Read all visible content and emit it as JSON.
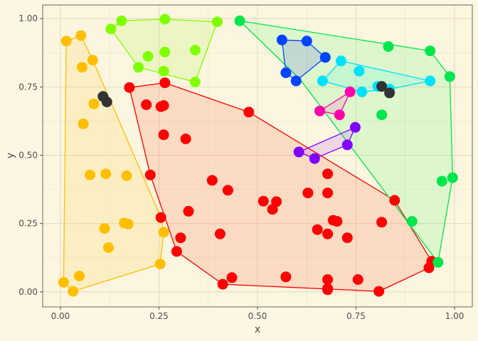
{
  "chart_data": {
    "type": "scatter",
    "xlabel": "x",
    "ylabel": "y",
    "xlim": [
      -0.045,
      1.045
    ],
    "ylim": [
      -0.055,
      1.05
    ],
    "x_ticks": [
      0,
      0.25,
      0.5,
      0.75,
      1
    ],
    "x_tick_labels": [
      "0.00",
      "0.25",
      "0.50",
      "0.75",
      "1.00"
    ],
    "y_ticks": [
      0,
      0.25,
      0.5,
      0.75,
      1
    ],
    "y_tick_labels": [
      "0.00",
      "0.25",
      "0.50",
      "0.75",
      "1.00"
    ],
    "grid": true,
    "legend": "none",
    "hulls": [
      {
        "stroke": "#ffbf00",
        "fill": "#ffbf00",
        "hull": [
          [
            0.015,
            0.918
          ],
          [
            0.052,
            0.938
          ],
          [
            0.082,
            0.848
          ],
          [
            0.255,
            0.272
          ],
          [
            0.262,
            0.218
          ],
          [
            0.253,
            0.102
          ],
          [
            0.032,
            0.002
          ],
          [
            0.008,
            0.035
          ]
        ],
        "points": [
          [
            0.015,
            0.918
          ],
          [
            0.052,
            0.938
          ],
          [
            0.082,
            0.848
          ],
          [
            0.055,
            0.822
          ],
          [
            0.085,
            0.688
          ],
          [
            0.058,
            0.615
          ],
          [
            0.075,
            0.428
          ],
          [
            0.115,
            0.432
          ],
          [
            0.168,
            0.425
          ],
          [
            0.255,
            0.272
          ],
          [
            0.262,
            0.218
          ],
          [
            0.162,
            0.252
          ],
          [
            0.172,
            0.248
          ],
          [
            0.112,
            0.232
          ],
          [
            0.122,
            0.162
          ],
          [
            0.253,
            0.102
          ],
          [
            0.048,
            0.058
          ],
          [
            0.008,
            0.035
          ],
          [
            0.032,
            0.002
          ]
        ]
      },
      {
        "stroke": "#80ff00",
        "fill": "#80ff00",
        "hull": [
          [
            0.128,
            0.962
          ],
          [
            0.155,
            0.992
          ],
          [
            0.265,
            0.998
          ],
          [
            0.398,
            0.988
          ],
          [
            0.342,
            0.768
          ],
          [
            0.198,
            0.822
          ]
        ],
        "points": [
          [
            0.128,
            0.962
          ],
          [
            0.155,
            0.992
          ],
          [
            0.265,
            0.998
          ],
          [
            0.398,
            0.988
          ],
          [
            0.222,
            0.862
          ],
          [
            0.265,
            0.878
          ],
          [
            0.342,
            0.885
          ],
          [
            0.198,
            0.822
          ],
          [
            0.262,
            0.808
          ],
          [
            0.342,
            0.768
          ]
        ]
      },
      {
        "stroke": "#ff0000",
        "fill": "#ff2200",
        "hull": [
          [
            0.265,
            0.765
          ],
          [
            0.478,
            0.658
          ],
          [
            0.848,
            0.335
          ],
          [
            0.942,
            0.112
          ],
          [
            0.935,
            0.088
          ],
          [
            0.808,
            0.002
          ],
          [
            0.412,
            0.028
          ],
          [
            0.295,
            0.148
          ],
          [
            0.228,
            0.428
          ],
          [
            0.175,
            0.748
          ]
        ],
        "points": [
          [
            0.175,
            0.748
          ],
          [
            0.265,
            0.765
          ],
          [
            0.218,
            0.685
          ],
          [
            0.255,
            0.678
          ],
          [
            0.262,
            0.682
          ],
          [
            0.478,
            0.658
          ],
          [
            0.262,
            0.575
          ],
          [
            0.318,
            0.56
          ],
          [
            0.228,
            0.428
          ],
          [
            0.385,
            0.408
          ],
          [
            0.425,
            0.372
          ],
          [
            0.548,
            0.33
          ],
          [
            0.515,
            0.332
          ],
          [
            0.538,
            0.302
          ],
          [
            0.628,
            0.362
          ],
          [
            0.678,
            0.432
          ],
          [
            0.678,
            0.362
          ],
          [
            0.848,
            0.335
          ],
          [
            0.325,
            0.295
          ],
          [
            0.255,
            0.272
          ],
          [
            0.405,
            0.212
          ],
          [
            0.305,
            0.198
          ],
          [
            0.295,
            0.148
          ],
          [
            0.652,
            0.228
          ],
          [
            0.678,
            0.212
          ],
          [
            0.692,
            0.262
          ],
          [
            0.702,
            0.258
          ],
          [
            0.728,
            0.198
          ],
          [
            0.815,
            0.255
          ],
          [
            0.942,
            0.112
          ],
          [
            0.935,
            0.088
          ],
          [
            0.435,
            0.052
          ],
          [
            0.572,
            0.055
          ],
          [
            0.678,
            0.045
          ],
          [
            0.755,
            0.045
          ],
          [
            0.412,
            0.028
          ],
          [
            0.678,
            0.012
          ],
          [
            0.678,
            0.008
          ],
          [
            0.808,
            0.002
          ]
        ]
      },
      {
        "stroke": "#00e64d",
        "fill": "#00ff40",
        "hull": [
          [
            0.455,
            0.992
          ],
          [
            0.938,
            0.882
          ],
          [
            0.988,
            0.788
          ],
          [
            0.995,
            0.418
          ],
          [
            0.958,
            0.108
          ],
          [
            0.608,
            0.778
          ]
        ],
        "points": [
          [
            0.455,
            0.992
          ],
          [
            0.832,
            0.898
          ],
          [
            0.938,
            0.882
          ],
          [
            0.988,
            0.788
          ],
          [
            0.815,
            0.648
          ],
          [
            0.968,
            0.405
          ],
          [
            0.995,
            0.418
          ],
          [
            0.892,
            0.258
          ],
          [
            0.958,
            0.108
          ]
        ]
      },
      {
        "stroke": "#00e0ff",
        "fill": "#00ffff",
        "hull": [
          [
            0.712,
            0.845
          ],
          [
            0.938,
            0.772
          ],
          [
            0.835,
            0.742
          ],
          [
            0.765,
            0.732
          ],
          [
            0.665,
            0.772
          ]
        ],
        "points": [
          [
            0.712,
            0.845
          ],
          [
            0.758,
            0.808
          ],
          [
            0.938,
            0.772
          ],
          [
            0.665,
            0.772
          ],
          [
            0.805,
            0.752
          ],
          [
            0.835,
            0.742
          ],
          [
            0.765,
            0.732
          ]
        ]
      },
      {
        "stroke": "#0044ff",
        "fill": "#0000ff",
        "hull": [
          [
            0.562,
            0.922
          ],
          [
            0.625,
            0.918
          ],
          [
            0.672,
            0.858
          ],
          [
            0.598,
            0.772
          ],
          [
            0.572,
            0.802
          ]
        ],
        "points": [
          [
            0.562,
            0.922
          ],
          [
            0.625,
            0.918
          ],
          [
            0.672,
            0.858
          ],
          [
            0.572,
            0.802
          ],
          [
            0.598,
            0.772
          ]
        ]
      },
      {
        "stroke": "#ff00aa",
        "fill": "#ff00cc",
        "hull": [
          [
            0.735,
            0.732
          ],
          [
            0.708,
            0.648
          ],
          [
            0.658,
            0.662
          ]
        ],
        "points": [
          [
            0.735,
            0.732
          ],
          [
            0.658,
            0.662
          ],
          [
            0.708,
            0.648
          ]
        ]
      },
      {
        "stroke": "#8000ff",
        "fill": "#8000ff",
        "hull": [
          [
            0.748,
            0.602
          ],
          [
            0.728,
            0.538
          ],
          [
            0.645,
            0.488
          ],
          [
            0.605,
            0.512
          ]
        ],
        "points": [
          [
            0.748,
            0.602
          ],
          [
            0.605,
            0.512
          ],
          [
            0.728,
            0.538
          ],
          [
            0.645,
            0.488
          ]
        ]
      }
    ],
    "extra_points": [
      {
        "color": "#333333",
        "points": [
          [
            0.108,
            0.715
          ],
          [
            0.118,
            0.695
          ],
          [
            0.815,
            0.752
          ],
          [
            0.835,
            0.728
          ]
        ]
      }
    ]
  }
}
